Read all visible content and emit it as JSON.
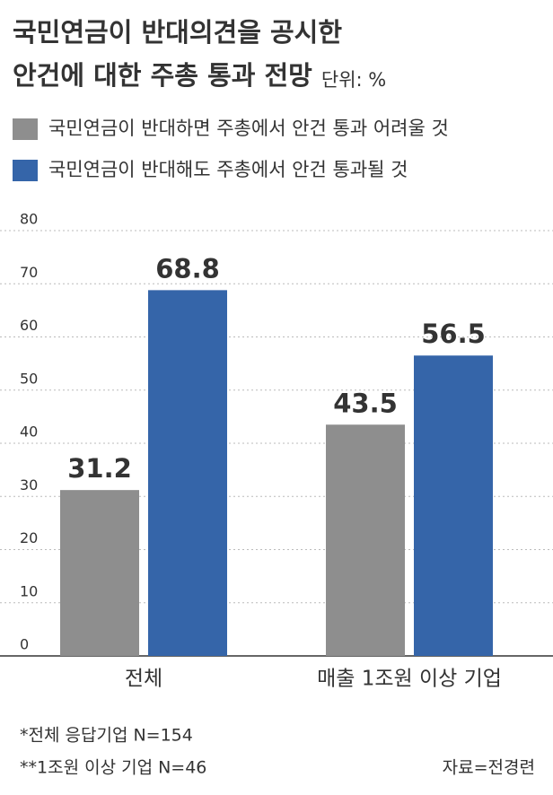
{
  "chart_data": {
    "type": "bar",
    "title": [
      "국민연금이 반대의견을 공시한",
      "안건에 대한 주총 통과 전망"
    ],
    "unit": "단위: %",
    "categories": [
      "전체",
      "매출 1조원 이상 기업"
    ],
    "series": [
      {
        "name": "국민연금이 반대하면 주총에서 안건 통과 어려울 것",
        "color": "#8e8e8e",
        "values": [
          31.2,
          43.5
        ]
      },
      {
        "name": "국민연금이 반대해도 주총에서 안건 통과될 것",
        "color": "#3565a9",
        "values": [
          68.8,
          56.5
        ]
      }
    ],
    "ylim": [
      0,
      80
    ],
    "yticks": [
      0,
      10,
      20,
      30,
      40,
      50,
      60,
      70,
      80
    ],
    "grid": true,
    "notes": [
      "*전체 응답기업 N=154",
      "**1조원 이상 기업 N=46"
    ],
    "source": "자료=전경련"
  }
}
